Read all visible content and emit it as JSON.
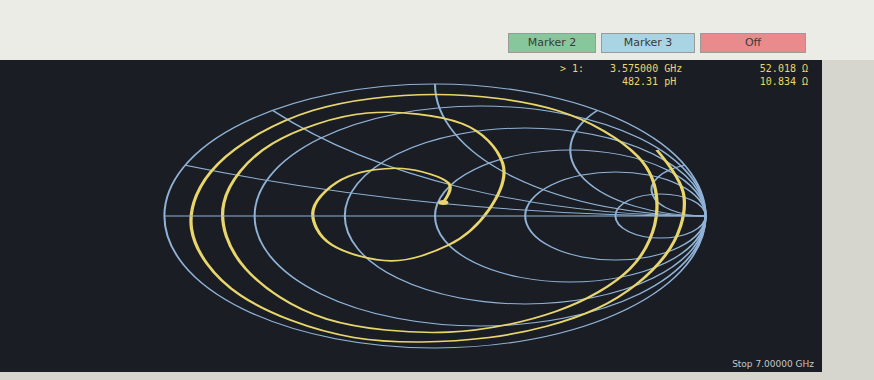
{
  "header": {
    "buttons": [
      {
        "text": "Marker 2",
        "color": "#86c89c"
      },
      {
        "text": "Marker 3",
        "color": "#a9d4e4"
      },
      {
        "text": "Off",
        "color": "#e98a8c"
      }
    ]
  },
  "readout": {
    "marker": "> 1:",
    "frequency": "3.575000 GHz",
    "resistance": "52.018 Ω",
    "inductance": "482.31 pH",
    "reactance": "10.834 Ω"
  },
  "stop_label": "Stop 7.00000 GHz",
  "chart_data": {
    "type": "smith",
    "grid": true,
    "tick_labels": false,
    "xticks": [
      0.2,
      0.5,
      1,
      2,
      5
    ],
    "yticks": [
      0.2,
      0.5,
      1,
      2,
      5
    ],
    "marker_point": {
      "real": 1.04,
      "imag": 0.217
    },
    "series": [
      {
        "color": "#e8d66c",
        "real": [
          1.04,
          0.969,
          0.618,
          0.441,
          0.378,
          0.413,
          0.588,
          0.998,
          1.49,
          1.076,
          0.385,
          0.152,
          0.118,
          0.12,
          0.115,
          0.09,
          0.133,
          0.34,
          1.349,
          9.315,
          0.887,
          0.167,
          0.083,
          0.057,
          0.059,
          0.05,
          0.037,
          0.025,
          0.076,
          0.231,
          1.667,
          4.536,
          0.275
        ],
        "imag": [
          0.217,
          0.518,
          0.52,
          0.327,
          0.048,
          -0.225,
          -0.465,
          -0.463,
          0.156,
          1.107,
          1.077,
          0.719,
          0.384,
          0.063,
          -0.262,
          -0.607,
          -1.05,
          -1.754,
          -3.356,
          2.865,
          3.396,
          1.698,
          0.997,
          0.583,
          0.235,
          -0.055,
          -0.362,
          -0.725,
          -1.238,
          -2.154,
          -5.333,
          10.381,
          3.541
        ]
      }
    ]
  }
}
